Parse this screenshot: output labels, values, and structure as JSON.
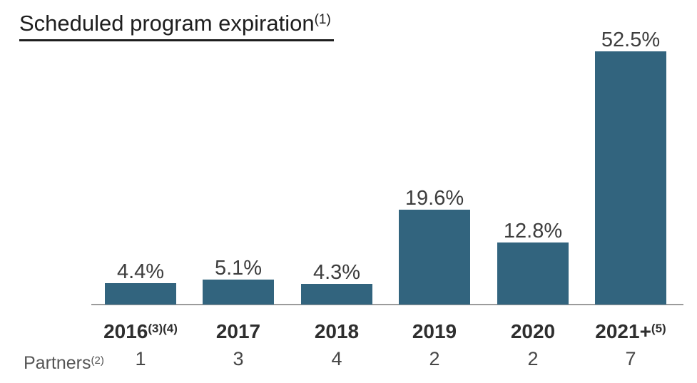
{
  "title": {
    "text": "Scheduled program expiration",
    "sup": "(1)"
  },
  "chart_data": {
    "type": "bar",
    "title": "Scheduled program expiration",
    "title_footnote": "(1)",
    "categories": [
      {
        "label": "2016",
        "sup": "(3)(4)"
      },
      {
        "label": "2017",
        "sup": ""
      },
      {
        "label": "2018",
        "sup": ""
      },
      {
        "label": "2019",
        "sup": ""
      },
      {
        "label": "2020",
        "sup": ""
      },
      {
        "label": "2021+",
        "sup": "(5)"
      }
    ],
    "values": [
      4.4,
      5.1,
      4.3,
      19.6,
      12.8,
      52.5
    ],
    "value_labels": [
      "4.4%",
      "5.1%",
      "4.3%",
      "19.6%",
      "12.8%",
      "52.5%"
    ],
    "unit": "%",
    "ylim": [
      0,
      55
    ],
    "y_axis_visible": false,
    "grid": false,
    "legend": false,
    "data_labels": true,
    "bar_color": "#32647E",
    "axis_color": "#9B9B9B",
    "partners_row": {
      "label": "Partners",
      "sup": "(2)",
      "values": [
        "1",
        "3",
        "4",
        "2",
        "2",
        "7"
      ]
    }
  }
}
